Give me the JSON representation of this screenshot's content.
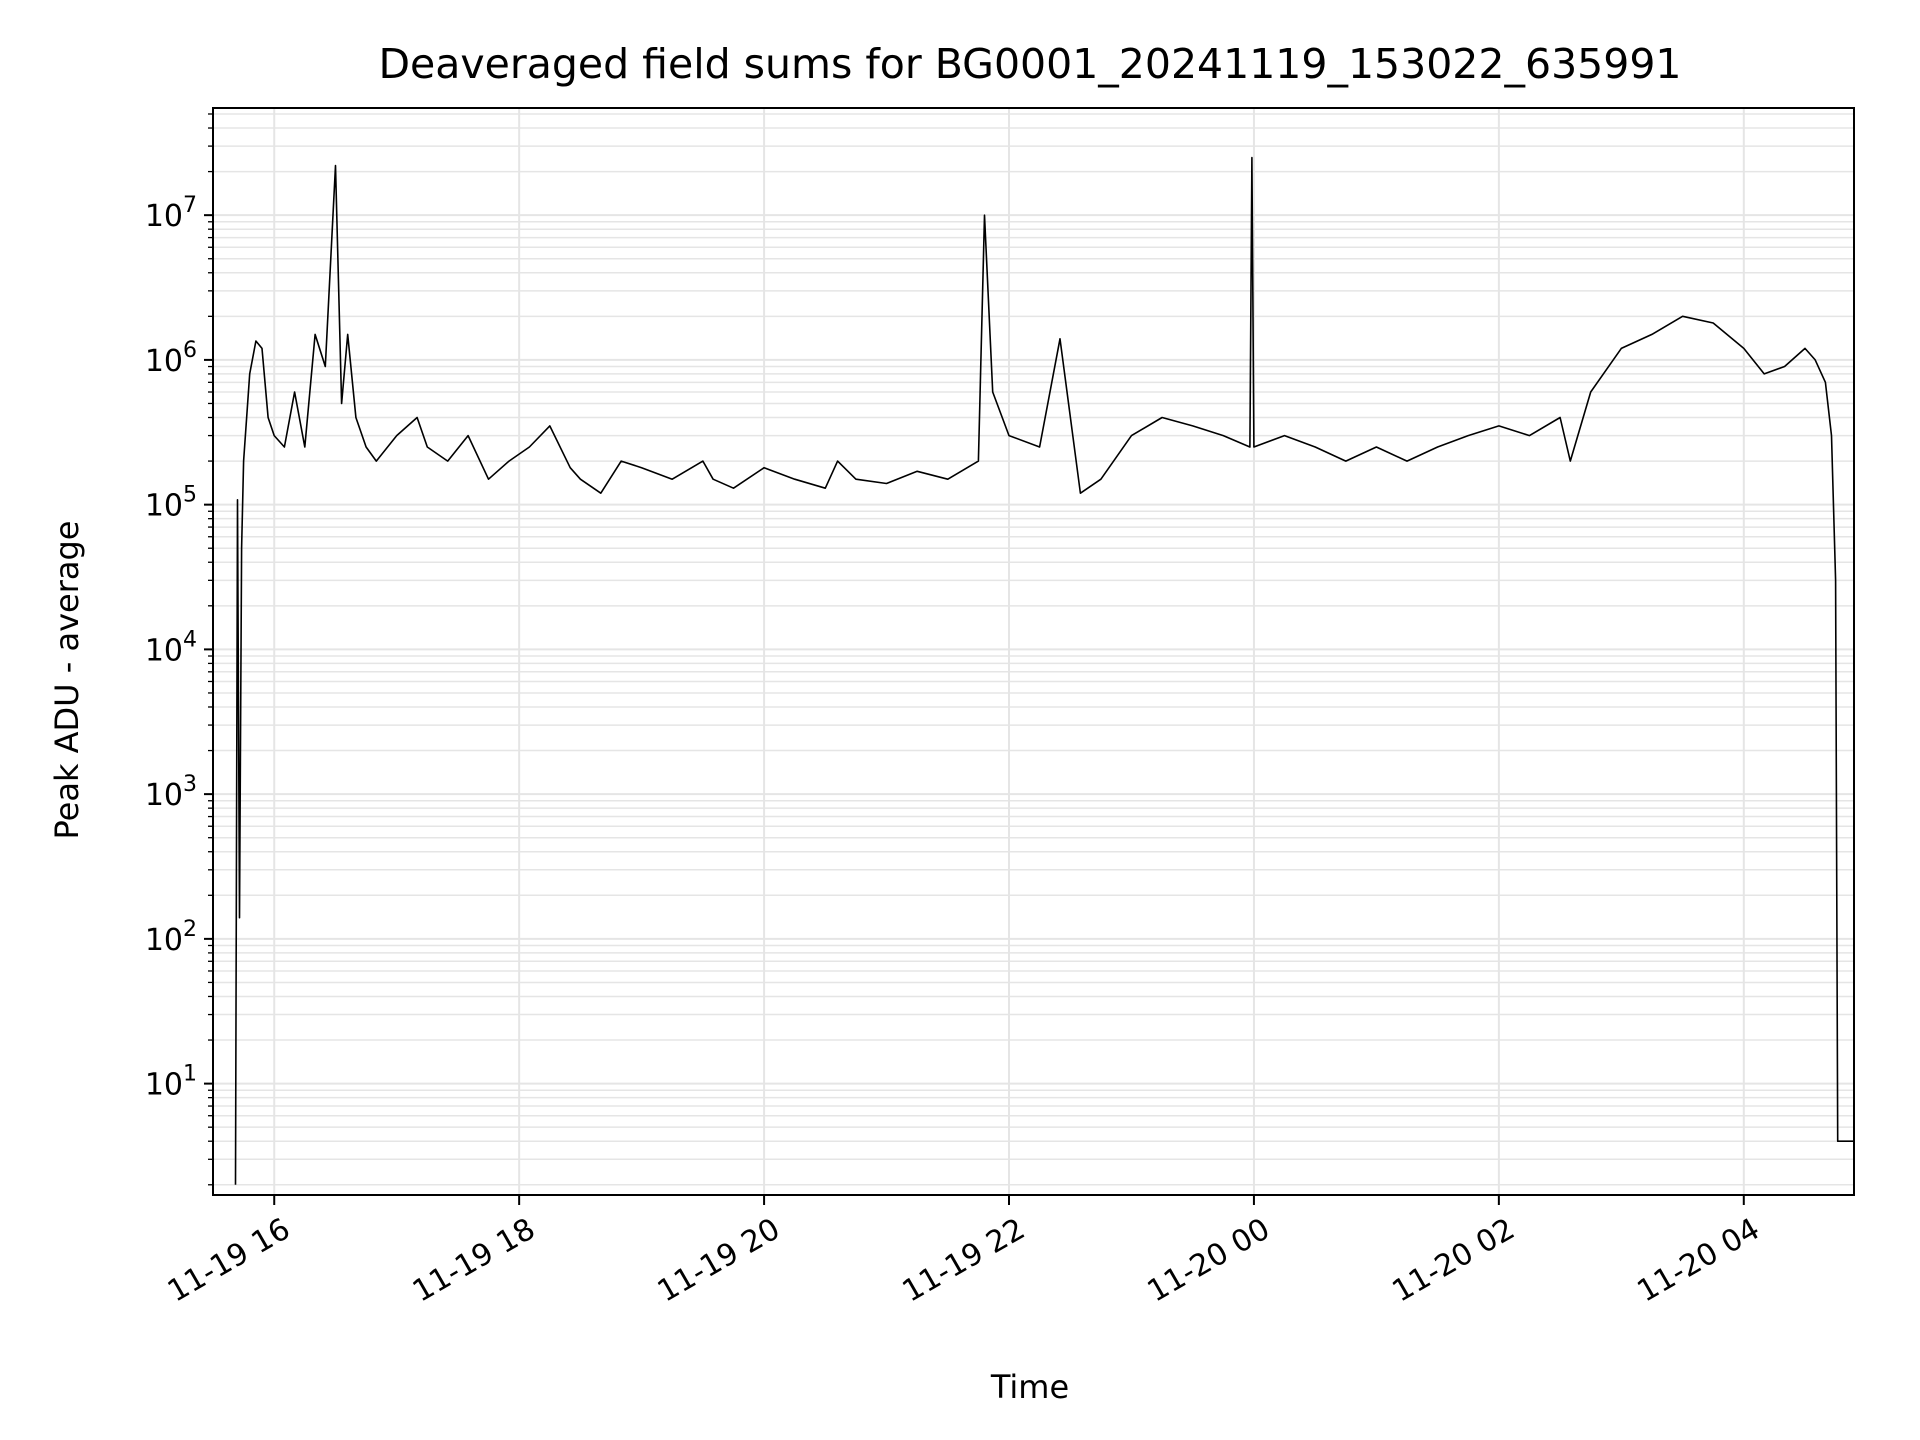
{
  "chart_data": {
    "type": "line",
    "title": "Deaveraged field sums for BG0001_20241119_153022_635991",
    "xlabel": "Time",
    "ylabel": "Peak ADU - average",
    "y_scale": "log",
    "grid": true,
    "legend": "none",
    "colors": {
      "line": "#000000",
      "grid": "#e5e5e5",
      "axes": "#000000"
    },
    "xlim": [
      "2024-11-19 15:30",
      "2024-11-20 04:54"
    ],
    "ylim": [
      1.7,
      55000000
    ],
    "x_ticks": [
      {
        "value": "2024-11-19 16:00",
        "label": "11-19 16"
      },
      {
        "value": "2024-11-19 18:00",
        "label": "11-19 18"
      },
      {
        "value": "2024-11-19 20:00",
        "label": "11-19 20"
      },
      {
        "value": "2024-11-19 22:00",
        "label": "11-19 22"
      },
      {
        "value": "2024-11-20 00:00",
        "label": "11-20 00"
      },
      {
        "value": "2024-11-20 02:00",
        "label": "11-20 02"
      },
      {
        "value": "2024-11-20 04:00",
        "label": "11-20 04"
      }
    ],
    "y_ticks": [
      {
        "value": 10,
        "base": "10",
        "exp": "1"
      },
      {
        "value": 100,
        "base": "10",
        "exp": "2"
      },
      {
        "value": 1000,
        "base": "10",
        "exp": "3"
      },
      {
        "value": 10000,
        "base": "10",
        "exp": "4"
      },
      {
        "value": 100000,
        "base": "10",
        "exp": "5"
      },
      {
        "value": 1000000,
        "base": "10",
        "exp": "6"
      },
      {
        "value": 10000000,
        "base": "10",
        "exp": "7"
      }
    ],
    "series": [
      {
        "x": [
          "2024-11-19 15:41",
          "2024-11-19 15:42",
          "2024-11-19 15:43",
          "2024-11-19 15:44",
          "2024-11-19 15:45",
          "2024-11-19 15:48",
          "2024-11-19 15:51",
          "2024-11-19 15:54",
          "2024-11-19 15:57",
          "2024-11-19 16:00",
          "2024-11-19 16:05",
          "2024-11-19 16:10",
          "2024-11-19 16:15",
          "2024-11-19 16:20",
          "2024-11-19 16:25",
          "2024-11-19 16:30",
          "2024-11-19 16:33",
          "2024-11-19 16:36",
          "2024-11-19 16:40",
          "2024-11-19 16:45",
          "2024-11-19 16:50",
          "2024-11-19 17:00",
          "2024-11-19 17:10",
          "2024-11-19 17:15",
          "2024-11-19 17:25",
          "2024-11-19 17:35",
          "2024-11-19 17:45",
          "2024-11-19 17:55",
          "2024-11-19 18:05",
          "2024-11-19 18:15",
          "2024-11-19 18:25",
          "2024-11-19 18:30",
          "2024-11-19 18:40",
          "2024-11-19 18:50",
          "2024-11-19 19:00",
          "2024-11-19 19:15",
          "2024-11-19 19:30",
          "2024-11-19 19:35",
          "2024-11-19 19:45",
          "2024-11-19 20:00",
          "2024-11-19 20:15",
          "2024-11-19 20:30",
          "2024-11-19 20:36",
          "2024-11-19 20:45",
          "2024-11-19 21:00",
          "2024-11-19 21:15",
          "2024-11-19 21:30",
          "2024-11-19 21:45",
          "2024-11-19 21:48",
          "2024-11-19 21:52",
          "2024-11-19 22:00",
          "2024-11-19 22:15",
          "2024-11-19 22:25",
          "2024-11-19 22:35",
          "2024-11-19 22:45",
          "2024-11-19 23:00",
          "2024-11-19 23:15",
          "2024-11-19 23:30",
          "2024-11-19 23:45",
          "2024-11-19 23:58",
          "2024-11-19 23:59",
          "2024-11-20 00:00",
          "2024-11-20 00:15",
          "2024-11-20 00:30",
          "2024-11-20 00:45",
          "2024-11-20 01:00",
          "2024-11-20 01:15",
          "2024-11-20 01:30",
          "2024-11-20 01:45",
          "2024-11-20 02:00",
          "2024-11-20 02:15",
          "2024-11-20 02:30",
          "2024-11-20 02:35",
          "2024-11-20 02:45",
          "2024-11-20 03:00",
          "2024-11-20 03:15",
          "2024-11-20 03:30",
          "2024-11-20 03:45",
          "2024-11-20 04:00",
          "2024-11-20 04:10",
          "2024-11-20 04:20",
          "2024-11-20 04:30",
          "2024-11-20 04:35",
          "2024-11-20 04:40",
          "2024-11-20 04:43",
          "2024-11-20 04:45",
          "2024-11-20 04:46",
          "2024-11-20 04:48",
          "2024-11-20 04:54"
        ],
        "y": [
          2,
          108000,
          140,
          50000,
          200000,
          800000,
          1350000,
          1200000,
          400000,
          300000,
          250000,
          600000,
          250000,
          1500000,
          900000,
          22000000,
          500000,
          1500000,
          400000,
          250000,
          200000,
          300000,
          400000,
          250000,
          200000,
          300000,
          150000,
          200000,
          250000,
          350000,
          180000,
          150000,
          120000,
          200000,
          180000,
          150000,
          200000,
          150000,
          130000,
          180000,
          150000,
          130000,
          200000,
          150000,
          140000,
          170000,
          150000,
          200000,
          10000000,
          600000,
          300000,
          250000,
          1400000,
          120000,
          150000,
          300000,
          400000,
          350000,
          300000,
          250000,
          25000000,
          250000,
          300000,
          250000,
          200000,
          250000,
          200000,
          250000,
          300000,
          350000,
          300000,
          400000,
          200000,
          600000,
          1200000,
          1500000,
          2000000,
          1800000,
          1200000,
          800000,
          900000,
          1200000,
          1000000,
          700000,
          300000,
          30000,
          4,
          4,
          4
        ]
      }
    ]
  }
}
